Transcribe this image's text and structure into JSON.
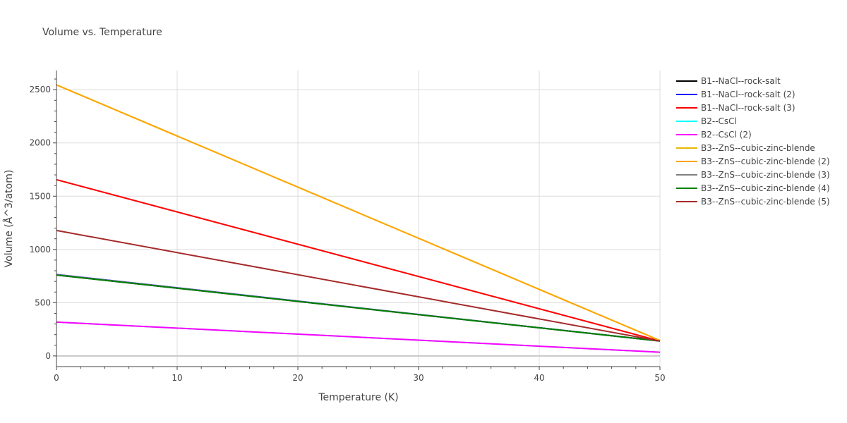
{
  "chart_data": {
    "type": "line",
    "title": "Volume vs. Temperature",
    "xlabel": "Temperature (K)",
    "ylabel": "Volume (Å^3/atom)",
    "xlim": [
      0,
      50
    ],
    "ylim": [
      -100,
      2680
    ],
    "xticks": [
      0,
      10,
      20,
      30,
      40,
      50
    ],
    "yticks": [
      0,
      500,
      1000,
      1500,
      2000,
      2500
    ],
    "grid": true,
    "legend_position": "right",
    "series": [
      {
        "name": "B1--NaCl--rock-salt",
        "color": "#000000",
        "x": [
          0,
          50
        ],
        "y": [
          760,
          140
        ]
      },
      {
        "name": "B1--NaCl--rock-salt (2)",
        "color": "#0000ff",
        "x": [
          0,
          50
        ],
        "y": [
          765,
          140
        ]
      },
      {
        "name": "B1--NaCl--rock-salt (3)",
        "color": "#ff0000",
        "x": [
          0,
          50
        ],
        "y": [
          1655,
          140
        ]
      },
      {
        "name": "B2--CsCl",
        "color": "#00ffff",
        "x": [
          0,
          50
        ],
        "y": [
          318,
          35
        ]
      },
      {
        "name": "B2--CsCl (2)",
        "color": "#ff00ff",
        "x": [
          0,
          50
        ],
        "y": [
          318,
          35
        ]
      },
      {
        "name": "B3--ZnS--cubic-zinc-blende",
        "color": "#e6b800",
        "x": [
          0,
          50
        ],
        "y": [
          2545,
          145
        ]
      },
      {
        "name": "B3--ZnS--cubic-zinc-blende (2)",
        "color": "#ffa500",
        "x": [
          0,
          50
        ],
        "y": [
          2545,
          145
        ]
      },
      {
        "name": "B3--ZnS--cubic-zinc-blende (3)",
        "color": "#808080",
        "x": [
          0,
          50
        ],
        "y": [
          763,
          140
        ]
      },
      {
        "name": "B3--ZnS--cubic-zinc-blende (4)",
        "color": "#008000",
        "x": [
          0,
          50
        ],
        "y": [
          760,
          140
        ]
      },
      {
        "name": "B3--ZnS--cubic-zinc-blende (5)",
        "color": "#a52a2a",
        "x": [
          0,
          50
        ],
        "y": [
          1178,
          140
        ]
      }
    ]
  }
}
